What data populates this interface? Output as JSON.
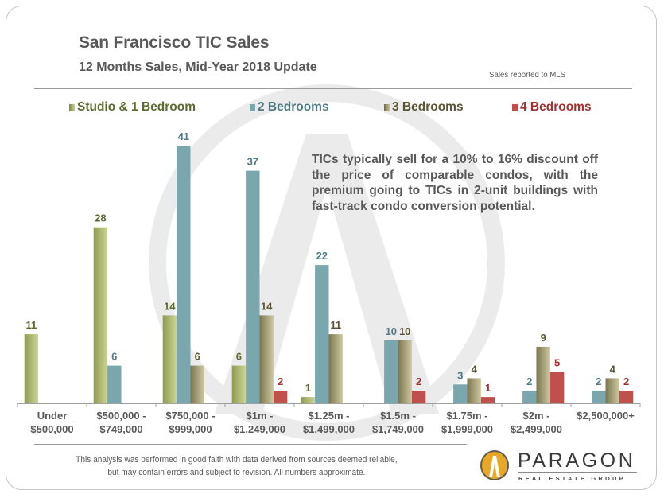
{
  "header": {
    "title": "San Francisco TIC Sales",
    "subtitle": "12 Months Sales, Mid-Year  2018 Update",
    "source_note": "Sales reported to MLS"
  },
  "annotation": "TICs typically sell for a 10% to 16% discount off the price of comparable condos, with the premium going to TICs in 2-unit buildings with fast-track condo conversion potential.",
  "footer": {
    "disclaimer": "This analysis was performed in good faith with data derived from sources deemed reliable, but may contain errors and subject to revision. All numbers approximate.",
    "logo_name": "PARAGON",
    "logo_tagline": "REAL ESTATE GROUP"
  },
  "colors": {
    "studio": "#a9b26a",
    "two_bed": "#7aa7ae",
    "three_bed": "#a49e78",
    "four_bed": "#c0504d",
    "studio_text": "#5b6b2e",
    "two_bed_text": "#4f7a84",
    "three_bed_text": "#5a5530",
    "four_bed_text": "#a3312e"
  },
  "chart_data": {
    "type": "bar",
    "title": "San Francisco TIC Sales",
    "subtitle": "12 Months Sales, Mid-Year 2018 Update",
    "xlabel": "",
    "ylabel": "",
    "ylim": [
      0,
      41
    ],
    "grid": false,
    "legend": "top",
    "categories": [
      [
        "Under",
        "$500,000"
      ],
      [
        "$500,000 -",
        "$749,000"
      ],
      [
        "$750,000 -",
        "$999,000"
      ],
      [
        "$1m -",
        "$1,249,000"
      ],
      [
        "$1.25m -",
        "$1,499,000"
      ],
      [
        "$1.5m -",
        "$1,749,000"
      ],
      [
        "$1.75m -",
        "$1,999,000"
      ],
      [
        "$2m -",
        "$2,499,000"
      ],
      [
        "$2,500,000+"
      ]
    ],
    "series": [
      {
        "name": "Studio & 1 Bedroom",
        "key": "studio",
        "values": [
          11,
          28,
          14,
          6,
          1,
          null,
          null,
          null,
          null
        ]
      },
      {
        "name": "2 Bedrooms",
        "key": "two_bed",
        "values": [
          null,
          6,
          41,
          37,
          22,
          10,
          3,
          2,
          2
        ]
      },
      {
        "name": "3 Bedrooms",
        "key": "three_bed",
        "values": [
          null,
          null,
          6,
          14,
          11,
          10,
          4,
          9,
          4
        ]
      },
      {
        "name": "4 Bedrooms",
        "key": "four_bed",
        "values": [
          null,
          null,
          null,
          2,
          null,
          2,
          1,
          5,
          2
        ]
      }
    ]
  }
}
